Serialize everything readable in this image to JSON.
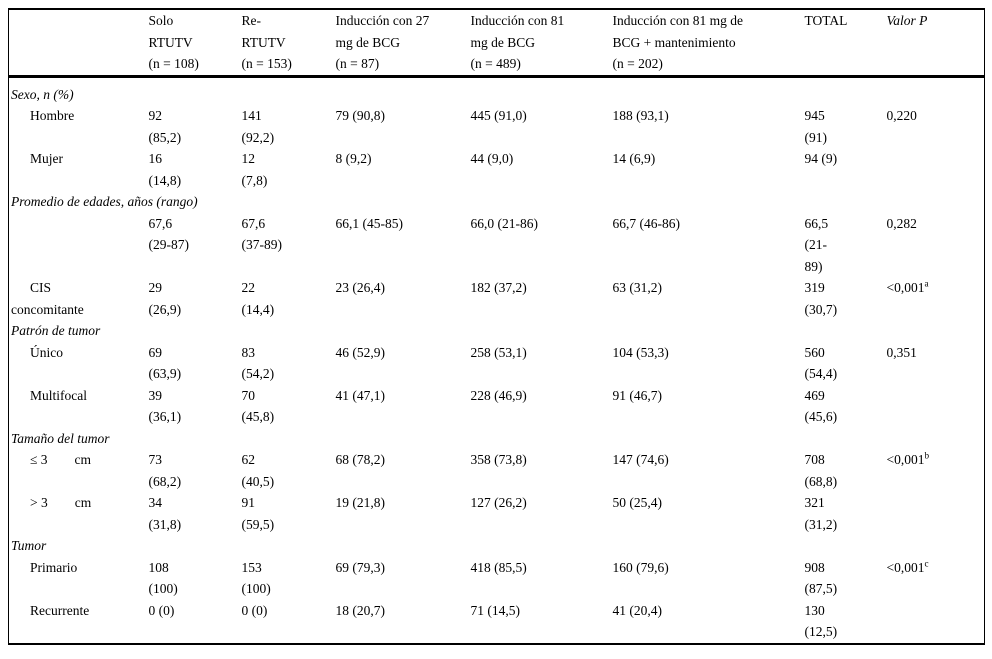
{
  "table": {
    "columns": [
      {
        "label": ""
      },
      {
        "label": "Solo\nRTUTV\n(n = 108)"
      },
      {
        "label": "Re-\nRTUTV\n(n = 153)"
      },
      {
        "label": "Inducción con 27\nmg de BCG\n(n = 87)"
      },
      {
        "label": "Inducción con 81\nmg de BCG\n(n = 489)"
      },
      {
        "label": "Inducción con 81 mg de\nBCG + mantenimiento\n(n = 202)"
      },
      {
        "label": "TOTAL"
      },
      {
        "label": "Valor P"
      }
    ],
    "rows": [
      {
        "section": true,
        "label": "Sexo, n (%)"
      },
      {
        "section": false,
        "label": "Hombre",
        "cells": [
          "92\n(85,2)",
          "141\n(92,2)",
          "79 (90,8)",
          "445 (91,0)",
          "188 (93,1)",
          "945\n(91)"
        ],
        "p": "0,220",
        "p_sup": ""
      },
      {
        "section": false,
        "label": "Mujer",
        "cells": [
          "16\n(14,8)",
          "12\n(7,8)",
          "8 (9,2)",
          "44 (9,0)",
          "14 (6,9)",
          "94 (9)"
        ],
        "p": "",
        "p_sup": ""
      },
      {
        "section": true,
        "label": "Promedio de edades, años (rango)"
      },
      {
        "section": false,
        "label": "",
        "cells": [
          "67,6\n(29-87)",
          "67,6\n(37-89)",
          "66,1 (45-85)",
          "66,0 (21-86)",
          "66,7 (46-86)",
          "66,5\n(21-\n89)"
        ],
        "p": "0,282",
        "p_sup": ""
      },
      {
        "section": false,
        "label": "CIS\nconcomitante",
        "cells": [
          "29\n(26,9)",
          "22\n(14,4)",
          "23 (26,4)",
          "182 (37,2)",
          "63 (31,2)",
          "319\n(30,7)"
        ],
        "p": "<0,001",
        "p_sup": "a"
      },
      {
        "section": true,
        "label": "Patrón de tumor"
      },
      {
        "section": false,
        "label": "Único",
        "cells": [
          "69\n(63,9)",
          "83\n(54,2)",
          "46 (52,9)",
          "258 (53,1)",
          "104 (53,3)",
          "560\n(54,4)"
        ],
        "p": "0,351",
        "p_sup": ""
      },
      {
        "section": false,
        "label": "Multifocal",
        "cells": [
          "39\n(36,1)",
          "70\n(45,8)",
          "41 (47,1)",
          "228 (46,9)",
          "91 (46,7)",
          "469\n(45,6)"
        ],
        "p": "",
        "p_sup": ""
      },
      {
        "section": true,
        "label": "Tamaño del tumor"
      },
      {
        "section": false,
        "label": "≤ 3        cm",
        "cells": [
          "73\n(68,2)",
          "62\n(40,5)",
          "68 (78,2)",
          "358 (73,8)",
          "147 (74,6)",
          "708\n(68,8)"
        ],
        "p": "<0,001",
        "p_sup": "b"
      },
      {
        "section": false,
        "label": "> 3        cm",
        "cells": [
          "34\n(31,8)",
          "91\n(59,5)",
          "19 (21,8)",
          "127 (26,2)",
          "50 (25,4)",
          "321\n(31,2)"
        ],
        "p": "",
        "p_sup": ""
      },
      {
        "section": true,
        "label": "Tumor"
      },
      {
        "section": false,
        "label": "Primario",
        "cells": [
          "108\n(100)",
          "153\n(100)",
          "69 (79,3)",
          "418 (85,5)",
          "160 (79,6)",
          "908\n(87,5)"
        ],
        "p": "<0,001",
        "p_sup": "c"
      },
      {
        "section": false,
        "label": "Recurrente",
        "cells": [
          "0 (0)",
          "0 (0)",
          "18 (20,7)",
          "71 (14,5)",
          "41 (20,4)",
          "130\n(12,5)"
        ],
        "p": "",
        "p_sup": ""
      }
    ]
  }
}
